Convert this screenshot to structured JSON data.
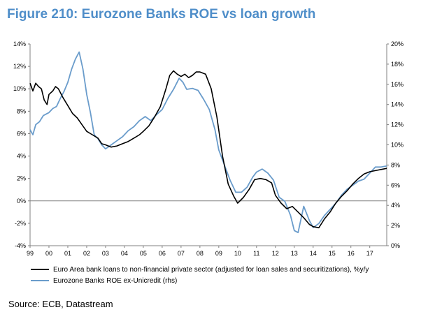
{
  "title": "Figure 210: Eurozone Banks ROE vs loan growth",
  "source": "Source: ECB, Datastream",
  "colors": {
    "loans": "#000000",
    "roe": "#6a9ccb",
    "title": "#4f8ec9"
  },
  "chart_data": {
    "type": "line",
    "x_tick_labels": [
      "99",
      "00",
      "01",
      "02",
      "03",
      "04",
      "05",
      "06",
      "07",
      "08",
      "09",
      "10",
      "11",
      "12",
      "13",
      "14",
      "15",
      "16",
      "17"
    ],
    "x_range": [
      1999.0,
      2017.9
    ],
    "y_left": {
      "range": [
        -4,
        14
      ],
      "ticks": [
        "-4%",
        "-2%",
        "0%",
        "2%",
        "4%",
        "6%",
        "8%",
        "10%",
        "12%",
        "14%"
      ]
    },
    "y_right": {
      "range": [
        0,
        20
      ],
      "ticks": [
        "0%",
        "2%",
        "4%",
        "6%",
        "8%",
        "10%",
        "12%",
        "14%",
        "16%",
        "18%",
        "20%"
      ]
    },
    "grid": false,
    "series": [
      {
        "name": "Euro Area bank loans to non-financial private sector (adjusted for loan sales and securitizations), %y/y",
        "axis": "left",
        "points": [
          [
            1999.0,
            10.5
          ],
          [
            1999.15,
            9.8
          ],
          [
            1999.3,
            10.5
          ],
          [
            1999.45,
            10.2
          ],
          [
            1999.6,
            10.0
          ],
          [
            1999.75,
            9.0
          ],
          [
            1999.9,
            8.6
          ],
          [
            2000.0,
            9.5
          ],
          [
            2000.2,
            9.8
          ],
          [
            2000.35,
            10.2
          ],
          [
            2000.5,
            10.0
          ],
          [
            2000.75,
            9.2
          ],
          [
            2001.0,
            8.5
          ],
          [
            2001.25,
            7.8
          ],
          [
            2001.5,
            7.4
          ],
          [
            2001.75,
            6.8
          ],
          [
            2002.0,
            6.2
          ],
          [
            2002.3,
            5.9
          ],
          [
            2002.6,
            5.6
          ],
          [
            2002.8,
            5.1
          ],
          [
            2003.0,
            5.0
          ],
          [
            2003.3,
            4.8
          ],
          [
            2003.6,
            4.9
          ],
          [
            2003.9,
            5.1
          ],
          [
            2004.2,
            5.3
          ],
          [
            2004.5,
            5.6
          ],
          [
            2004.8,
            5.9
          ],
          [
            2005.0,
            6.2
          ],
          [
            2005.3,
            6.7
          ],
          [
            2005.6,
            7.5
          ],
          [
            2005.9,
            8.4
          ],
          [
            2006.2,
            10.0
          ],
          [
            2006.4,
            11.2
          ],
          [
            2006.6,
            11.6
          ],
          [
            2006.8,
            11.3
          ],
          [
            2007.0,
            11.1
          ],
          [
            2007.2,
            11.3
          ],
          [
            2007.4,
            11.0
          ],
          [
            2007.6,
            11.2
          ],
          [
            2007.8,
            11.5
          ],
          [
            2008.0,
            11.5
          ],
          [
            2008.3,
            11.3
          ],
          [
            2008.6,
            10.0
          ],
          [
            2008.9,
            7.5
          ],
          [
            2009.2,
            4.0
          ],
          [
            2009.5,
            1.5
          ],
          [
            2009.8,
            0.4
          ],
          [
            2010.0,
            -0.2
          ],
          [
            2010.3,
            0.3
          ],
          [
            2010.6,
            1.0
          ],
          [
            2010.9,
            1.9
          ],
          [
            2011.2,
            2.0
          ],
          [
            2011.5,
            1.9
          ],
          [
            2011.8,
            1.6
          ],
          [
            2012.0,
            0.5
          ],
          [
            2012.3,
            -0.2
          ],
          [
            2012.6,
            -0.7
          ],
          [
            2012.9,
            -0.5
          ],
          [
            2013.2,
            -1.0
          ],
          [
            2013.5,
            -1.5
          ],
          [
            2013.8,
            -2.1
          ],
          [
            2014.0,
            -2.3
          ],
          [
            2014.3,
            -2.4
          ],
          [
            2014.6,
            -1.6
          ],
          [
            2014.9,
            -1.0
          ],
          [
            2015.2,
            -0.2
          ],
          [
            2015.5,
            0.4
          ],
          [
            2015.8,
            0.9
          ],
          [
            2016.1,
            1.5
          ],
          [
            2016.4,
            2.0
          ],
          [
            2016.7,
            2.4
          ],
          [
            2017.0,
            2.6
          ],
          [
            2017.3,
            2.7
          ],
          [
            2017.6,
            2.8
          ],
          [
            2017.9,
            2.9
          ]
        ]
      },
      {
        "name": "Eurozone Banks ROE ex-Unicredit (rhs)",
        "axis": "right",
        "points": [
          [
            1999.0,
            11.5
          ],
          [
            1999.15,
            11.0
          ],
          [
            1999.3,
            12.0
          ],
          [
            1999.5,
            12.3
          ],
          [
            1999.7,
            12.9
          ],
          [
            2000.0,
            13.2
          ],
          [
            2000.2,
            13.6
          ],
          [
            2000.4,
            13.8
          ],
          [
            2000.6,
            14.6
          ],
          [
            2000.8,
            15.3
          ],
          [
            2001.0,
            16.2
          ],
          [
            2001.2,
            17.5
          ],
          [
            2001.4,
            18.5
          ],
          [
            2001.6,
            19.2
          ],
          [
            2001.8,
            17.5
          ],
          [
            2002.0,
            15.0
          ],
          [
            2002.2,
            13.2
          ],
          [
            2002.4,
            11.0
          ],
          [
            2002.6,
            10.6
          ],
          [
            2002.8,
            10.0
          ],
          [
            2003.0,
            9.6
          ],
          [
            2003.3,
            10.0
          ],
          [
            2003.6,
            10.4
          ],
          [
            2003.9,
            10.8
          ],
          [
            2004.2,
            11.4
          ],
          [
            2004.5,
            11.8
          ],
          [
            2004.8,
            12.4
          ],
          [
            2005.1,
            12.8
          ],
          [
            2005.4,
            12.4
          ],
          [
            2005.7,
            13.0
          ],
          [
            2006.0,
            13.5
          ],
          [
            2006.3,
            14.6
          ],
          [
            2006.6,
            15.5
          ],
          [
            2006.9,
            16.6
          ],
          [
            2007.1,
            16.2
          ],
          [
            2007.3,
            15.5
          ],
          [
            2007.6,
            15.6
          ],
          [
            2007.9,
            15.4
          ],
          [
            2008.2,
            14.5
          ],
          [
            2008.5,
            13.5
          ],
          [
            2008.8,
            11.5
          ],
          [
            2009.0,
            9.5
          ],
          [
            2009.3,
            8.0
          ],
          [
            2009.6,
            6.5
          ],
          [
            2009.9,
            5.3
          ],
          [
            2010.2,
            5.3
          ],
          [
            2010.5,
            5.8
          ],
          [
            2010.8,
            6.8
          ],
          [
            2011.0,
            7.3
          ],
          [
            2011.3,
            7.6
          ],
          [
            2011.6,
            7.2
          ],
          [
            2011.9,
            6.5
          ],
          [
            2012.2,
            4.8
          ],
          [
            2012.5,
            4.4
          ],
          [
            2012.8,
            3.0
          ],
          [
            2013.0,
            1.5
          ],
          [
            2013.2,
            1.3
          ],
          [
            2013.5,
            3.9
          ],
          [
            2013.8,
            2.5
          ],
          [
            2014.0,
            1.8
          ],
          [
            2014.3,
            2.2
          ],
          [
            2014.6,
            3.0
          ],
          [
            2014.9,
            3.6
          ],
          [
            2015.2,
            4.2
          ],
          [
            2015.5,
            5.0
          ],
          [
            2015.8,
            5.6
          ],
          [
            2016.1,
            6.0
          ],
          [
            2016.4,
            6.4
          ],
          [
            2016.7,
            6.6
          ],
          [
            2017.0,
            7.2
          ],
          [
            2017.3,
            7.8
          ],
          [
            2017.6,
            7.8
          ],
          [
            2017.9,
            7.9
          ]
        ]
      }
    ]
  },
  "legend": {
    "loans_label": "Euro Area bank loans to non-financial private sector (adjusted for loan sales and securitizations), %y/y",
    "roe_label": "Eurozone Banks ROE ex-Unicredit (rhs)"
  }
}
